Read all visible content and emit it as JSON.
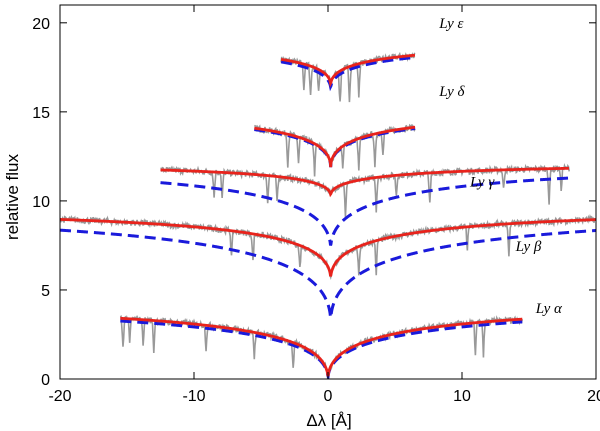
{
  "chart_data": {
    "type": "line",
    "title": "",
    "xlabel": "Δλ [Å]",
    "ylabel": "relative flux",
    "xlim": [
      -20,
      20
    ],
    "ylim": [
      0,
      21
    ],
    "xticks": [
      -20,
      -10,
      0,
      10,
      20
    ],
    "xtick_labels": [
      "-20",
      "-10",
      "0",
      "10",
      "20"
    ],
    "yticks": [
      0,
      5,
      10,
      15,
      20
    ],
    "ytick_labels": [
      "0",
      "5",
      "10",
      "15",
      "20"
    ],
    "grid": false,
    "legend": "none",
    "colors": {
      "observed": "#999999",
      "model_solid": "#e8231c",
      "model_dashed": "#1a1adb"
    },
    "annotations": [
      {
        "text": "Ly ε",
        "x": 8.3,
        "y": 19.7
      },
      {
        "text": "Ly δ",
        "x": 8.3,
        "y": 15.9
      },
      {
        "text": "Ly γ",
        "x": 10.6,
        "y": 10.8
      },
      {
        "text": "Ly β",
        "x": 14.0,
        "y": 7.2
      },
      {
        "text": "Ly α",
        "x": 15.5,
        "y": 3.7
      }
    ],
    "lines": [
      {
        "label": "Ly ε",
        "x_range": [
          -3.5,
          6.5
        ],
        "center": 0.2,
        "continuum": 18.9,
        "solid": {
          "min_value": 16.5,
          "slope": 0.48
        },
        "dashed": {
          "min_value": 16.3,
          "slope": 0.45
        },
        "observed_absorption_x": [
          -1.8,
          -1.3,
          -0.7,
          0.9,
          1.6,
          2.3
        ]
      },
      {
        "label": "Ly δ",
        "x_range": [
          -5.5,
          6.5
        ],
        "center": 0.2,
        "continuum": 15.1,
        "solid": {
          "min_value": 11.9,
          "slope": 0.48
        },
        "dashed": {
          "min_value": 11.9,
          "slope": 0.45
        },
        "observed_absorption_x": [
          -3.0,
          -2.2,
          -1.0,
          1.1,
          2.3,
          3.5,
          4.1
        ]
      },
      {
        "label": "Ly γ",
        "x_range": [
          -12.5,
          18.0
        ],
        "center": 0.2,
        "continuum": 12.1,
        "solid": {
          "min_value": 10.3,
          "slope": 0.45
        },
        "dashed": {
          "min_value": 7.3,
          "slope": 0.42
        },
        "observed_absorption_x": [
          -8.5,
          -7.9,
          -4.5,
          -3.8,
          1.3,
          3.6,
          5.1,
          7.6,
          13.1,
          16.5,
          17.4
        ]
      },
      {
        "label": "Ly β",
        "x_range": [
          -20.0,
          20.0
        ],
        "center": 0.2,
        "continuum": 9.5,
        "solid": {
          "min_value": 5.6,
          "slope": 0.44
        },
        "dashed": {
          "min_value": 3.2,
          "slope": 0.38
        },
        "observed_absorption_x": [
          -7.2,
          -5.6,
          -2.1,
          2.3,
          3.6,
          10.4,
          13.5
        ]
      },
      {
        "label": "Ly α",
        "x_range": [
          -15.5,
          14.5
        ],
        "center": 0.0,
        "continuum": 4.3,
        "solid": {
          "min_value": 0.0,
          "slope": 0.4
        },
        "dashed": {
          "min_value": 0.0,
          "slope": 0.36
        },
        "observed_absorption_x": [
          -15.3,
          -14.8,
          -13.8,
          -13.0,
          -9.1,
          -5.5,
          -2.6,
          11.0,
          11.6
        ]
      }
    ]
  }
}
